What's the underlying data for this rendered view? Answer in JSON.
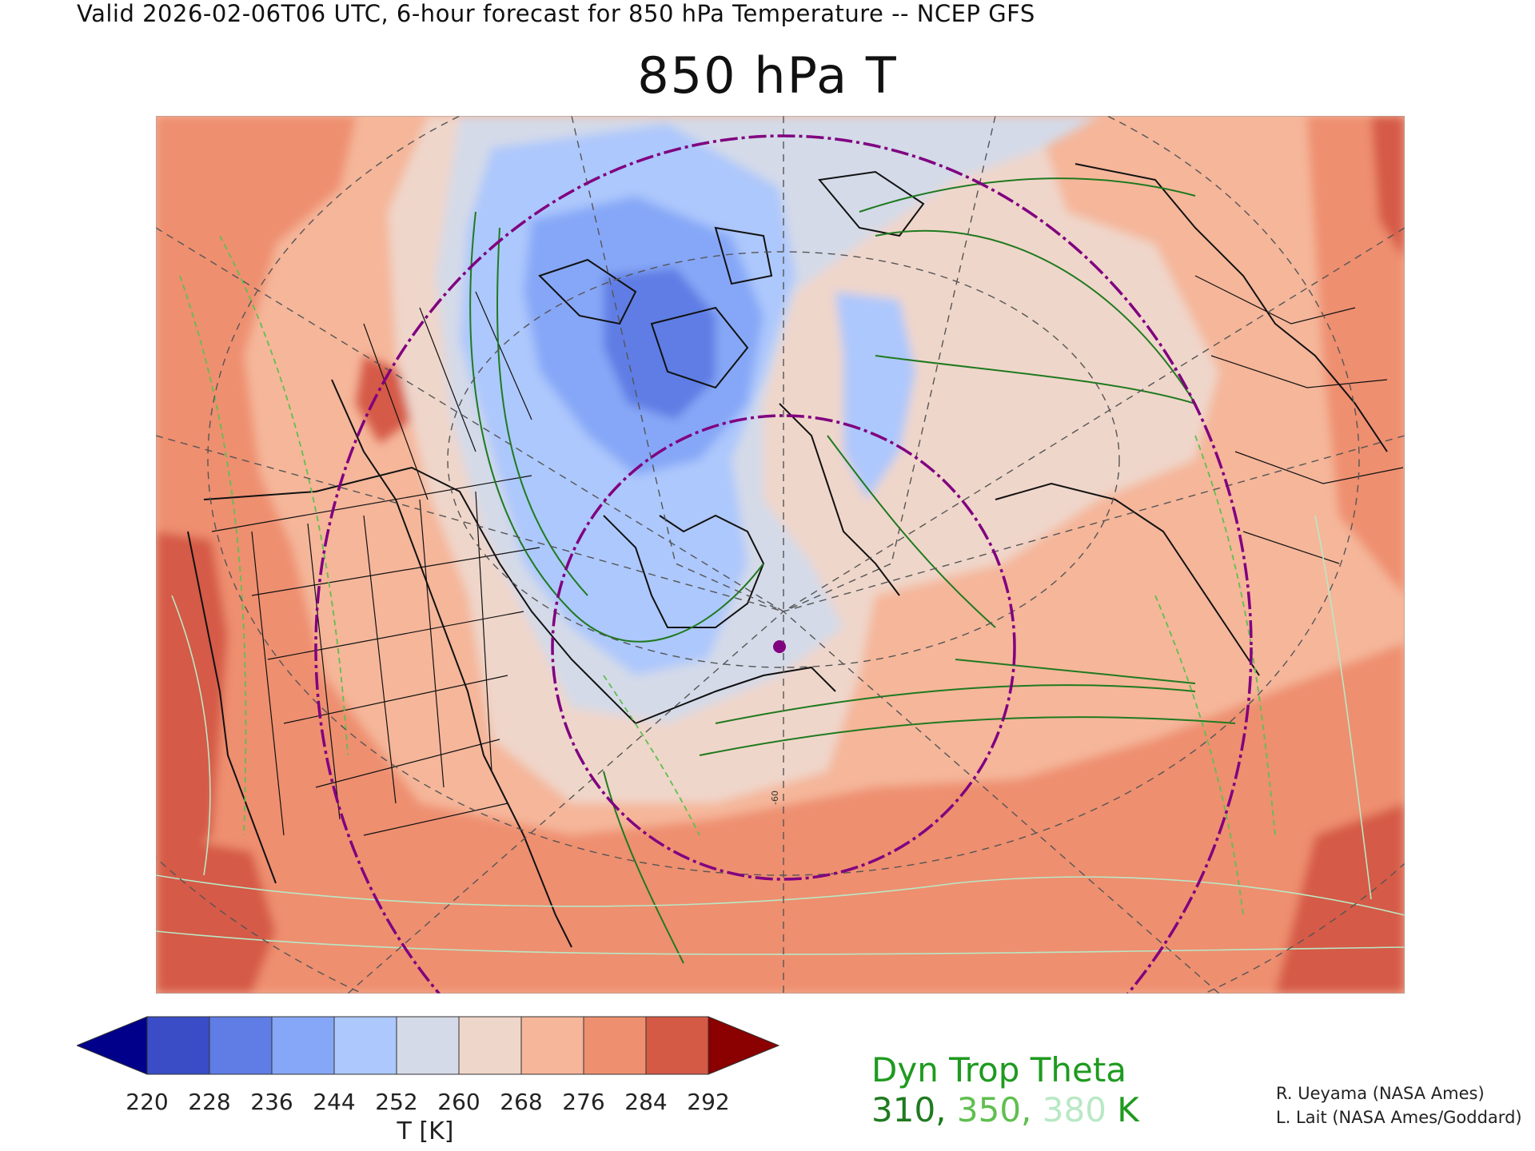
{
  "header": {
    "valid_line": "Valid 2026-02-06T06 UTC, 6-hour forecast for 850 hPa Temperature -- NCEP GFS",
    "title": "850 hPa T"
  },
  "colorbar": {
    "ticks": [
      "220",
      "228",
      "236",
      "244",
      "252",
      "260",
      "268",
      "276",
      "284",
      "292"
    ],
    "colors": [
      "#00008b",
      "#3a4cc6",
      "#5f7de4",
      "#86a7f7",
      "#adc8fc",
      "#d4dae8",
      "#efd6ca",
      "#f5b69a",
      "#ee8f70",
      "#d55a46",
      "#8b0000"
    ],
    "label": "T [K]"
  },
  "legend": {
    "title": "Dyn Trop Theta",
    "values": [
      {
        "text": "310,",
        "color": "#1f7a1f"
      },
      {
        "text": "350,",
        "color": "#5fbf4f"
      },
      {
        "text": "380",
        "color": "#b9e8c5"
      },
      {
        "text": "K",
        "color": "#1f9a1f"
      }
    ]
  },
  "credits": {
    "line1": "R. Ueyama (NASA Ames)",
    "line2": "L. Lait (NASA Ames/Goddard)"
  },
  "map": {
    "meridian_label": "-60",
    "marker_color": "#800080",
    "range_ring_color": "#800080"
  }
}
